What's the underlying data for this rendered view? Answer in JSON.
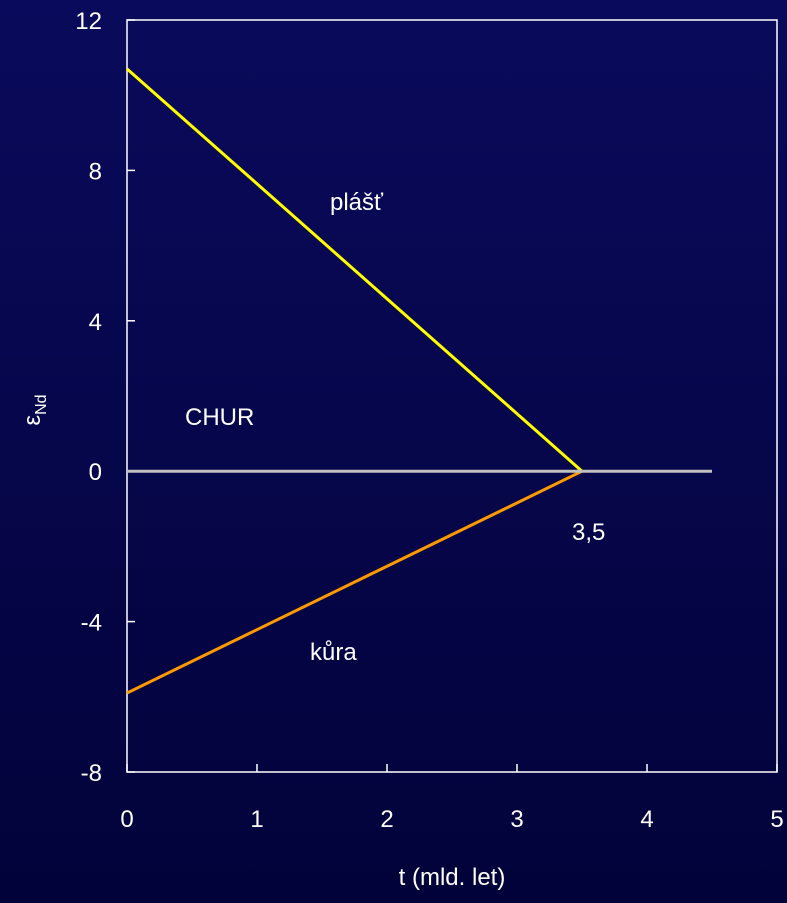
{
  "chart_data": {
    "type": "line",
    "xlabel": "t (mld. let)",
    "ylabel": "ε",
    "ylabel_sub": "Nd",
    "xlim": [
      0,
      5
    ],
    "ylim": [
      -8,
      12
    ],
    "x_ticks": [
      "0",
      "1",
      "2",
      "3",
      "4",
      "5"
    ],
    "y_ticks": [
      "12",
      "8",
      "4",
      "0",
      "-4",
      "-8"
    ],
    "grid": false,
    "colors": {
      "background": "#06064a",
      "axes": "#ffffff",
      "plast": "#ffff00",
      "kura": "#ff9900",
      "chur": "#c0c0c0"
    },
    "series": [
      {
        "name": "plášť",
        "x": [
          0,
          3.5
        ],
        "y": [
          10.7,
          0
        ]
      },
      {
        "name": "kůra",
        "x": [
          0,
          3.5
        ],
        "y": [
          -5.9,
          0
        ]
      },
      {
        "name": "CHUR",
        "x": [
          0,
          4.5
        ],
        "y": [
          0,
          0
        ]
      }
    ],
    "annotations": {
      "plast": "plášť",
      "kura": "kůra",
      "chur": "CHUR",
      "point": "3,5"
    }
  }
}
